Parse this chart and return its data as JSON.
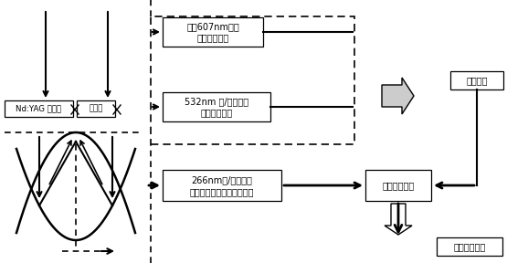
{
  "bg_color": "#ffffff",
  "box1_text_line1": "拉曼607nm通道",
  "box1_text_line2": "考虑臭氧吸收",
  "box2_text_line1": "532nm 米/瑞利通道",
  "box2_text_line2": "考虑臭氧吸收",
  "box3_text_line1": "266nm米/瑞利通道",
  "box3_text_line2": "考虑二氧化硫和臭氧的吸收",
  "box4_text": "扣除臭氧消光",
  "box5_text": "臭氧含量",
  "box6_text": "二氧化硫含量",
  "box7_text": "Nd:YAG 二倍频",
  "box8_text": "四倍频",
  "font_size": 7.0,
  "font_family": "SimHei"
}
